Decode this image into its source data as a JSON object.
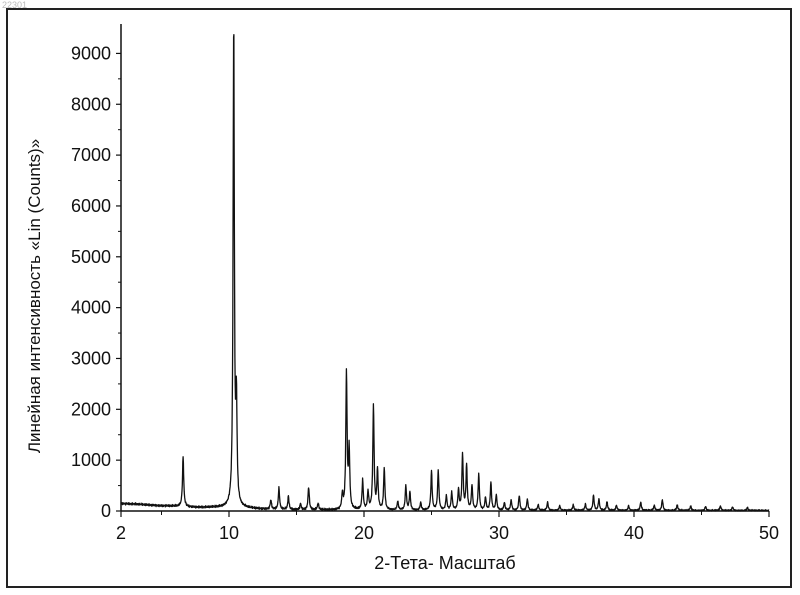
{
  "corner_id": "22301",
  "chart_data": {
    "type": "line",
    "title": "",
    "xlabel": "2-Тета- Масштаб",
    "ylabel": "Линейная интенсивность «Lin (Counts)»",
    "xlim": [
      2,
      50
    ],
    "ylim": [
      0,
      9500
    ],
    "x_ticks": [
      2,
      10,
      20,
      30,
      40,
      50
    ],
    "y_ticks": [
      0,
      1000,
      2000,
      3000,
      4000,
      5000,
      6000,
      7000,
      8000,
      9000
    ],
    "grid": false,
    "line_color": "#111111",
    "baseline": [
      [
        2,
        150
      ],
      [
        5,
        105
      ],
      [
        8,
        70
      ],
      [
        10,
        70
      ],
      [
        12,
        45
      ],
      [
        14,
        25
      ],
      [
        20,
        15
      ],
      [
        30,
        12
      ],
      [
        40,
        10
      ],
      [
        50,
        8
      ]
    ],
    "peaks": [
      {
        "x": 6.6,
        "y": 980
      },
      {
        "x": 10.35,
        "y": 9450
      },
      {
        "x": 10.55,
        "y": 1900
      },
      {
        "x": 13.1,
        "y": 180
      },
      {
        "x": 13.7,
        "y": 420
      },
      {
        "x": 14.4,
        "y": 260
      },
      {
        "x": 15.3,
        "y": 120
      },
      {
        "x": 15.9,
        "y": 450
      },
      {
        "x": 16.6,
        "y": 130
      },
      {
        "x": 18.4,
        "y": 300
      },
      {
        "x": 18.7,
        "y": 2700
      },
      {
        "x": 18.9,
        "y": 1150
      },
      {
        "x": 19.9,
        "y": 580
      },
      {
        "x": 20.3,
        "y": 350
      },
      {
        "x": 20.7,
        "y": 2050
      },
      {
        "x": 21.0,
        "y": 780
      },
      {
        "x": 21.5,
        "y": 820
      },
      {
        "x": 22.5,
        "y": 170
      },
      {
        "x": 23.1,
        "y": 480
      },
      {
        "x": 23.4,
        "y": 350
      },
      {
        "x": 24.2,
        "y": 150
      },
      {
        "x": 25.0,
        "y": 760
      },
      {
        "x": 25.5,
        "y": 780
      },
      {
        "x": 26.1,
        "y": 280
      },
      {
        "x": 26.5,
        "y": 350
      },
      {
        "x": 27.0,
        "y": 400
      },
      {
        "x": 27.3,
        "y": 1100
      },
      {
        "x": 27.6,
        "y": 870
      },
      {
        "x": 28.0,
        "y": 480
      },
      {
        "x": 28.5,
        "y": 700
      },
      {
        "x": 29.0,
        "y": 250
      },
      {
        "x": 29.4,
        "y": 540
      },
      {
        "x": 29.8,
        "y": 300
      },
      {
        "x": 30.4,
        "y": 150
      },
      {
        "x": 30.9,
        "y": 200
      },
      {
        "x": 31.5,
        "y": 290
      },
      {
        "x": 32.1,
        "y": 220
      },
      {
        "x": 32.9,
        "y": 110
      },
      {
        "x": 33.6,
        "y": 160
      },
      {
        "x": 34.5,
        "y": 90
      },
      {
        "x": 35.5,
        "y": 110
      },
      {
        "x": 36.4,
        "y": 120
      },
      {
        "x": 37.0,
        "y": 300
      },
      {
        "x": 37.4,
        "y": 220
      },
      {
        "x": 38.0,
        "y": 170
      },
      {
        "x": 38.7,
        "y": 100
      },
      {
        "x": 39.6,
        "y": 90
      },
      {
        "x": 40.5,
        "y": 160
      },
      {
        "x": 41.5,
        "y": 100
      },
      {
        "x": 42.1,
        "y": 210
      },
      {
        "x": 43.2,
        "y": 110
      },
      {
        "x": 44.2,
        "y": 90
      },
      {
        "x": 45.3,
        "y": 80
      },
      {
        "x": 46.4,
        "y": 90
      },
      {
        "x": 47.3,
        "y": 70
      },
      {
        "x": 48.4,
        "y": 60
      }
    ]
  }
}
